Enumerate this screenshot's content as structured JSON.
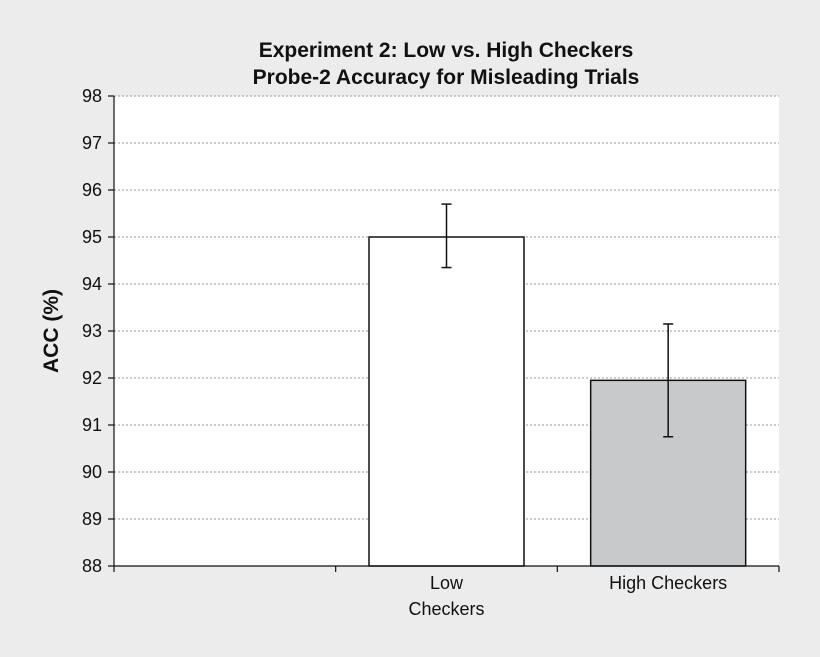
{
  "chart_data": {
    "type": "bar",
    "title": [
      "Experiment 2: Low vs. High Checkers",
      "Probe-2 Accuracy for Misleading Trials"
    ],
    "ylabel": "ACC (%)",
    "xlabel": "",
    "ylim": [
      88,
      98
    ],
    "yticks": [
      88,
      89,
      90,
      91,
      92,
      93,
      94,
      95,
      96,
      97,
      98
    ],
    "grid": true,
    "categories": [
      {
        "lines": [
          "Low",
          "Checkers"
        ]
      },
      {
        "lines": [
          "High Checkers"
        ]
      }
    ],
    "values": [
      95.0,
      91.95
    ],
    "error_low": [
      94.35,
      90.75
    ],
    "error_high": [
      95.7,
      93.15
    ],
    "colors": {
      "bars": [
        "#ffffff",
        "#c8c9cb"
      ],
      "bar_stroke": "#111111",
      "axis": "#111111",
      "grid": "#9a9a9a",
      "background": "#ececec",
      "plot_background": "#ffffff"
    }
  }
}
